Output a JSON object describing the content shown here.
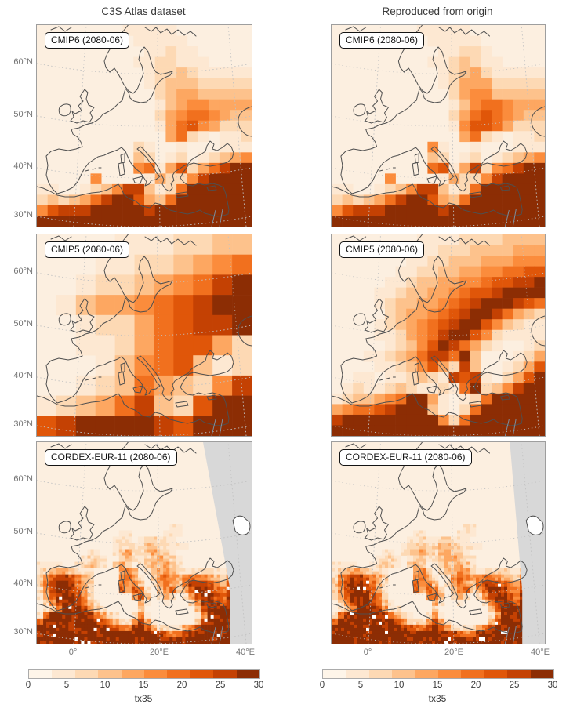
{
  "titles": {
    "left": "C3S Atlas dataset",
    "right": "Reproduced from origin"
  },
  "axes": {
    "lat_ticks": [
      "60°N",
      "50°N",
      "40°N",
      "30°N"
    ],
    "lon_ticks": [
      "0°",
      "20°E",
      "40°E"
    ]
  },
  "colors": {
    "map_background": "#fcefe0",
    "coastline": "#4f4f4f",
    "graticule": "#c2c2c2",
    "out_of_domain_gray": "#d8d8d8",
    "water_line": "#7e8e9c",
    "panel_frame": "#9e9e9e"
  },
  "chart_data": {
    "type": "heatmap",
    "variable": "tx35",
    "vmin": 0,
    "vmax": 30,
    "colorbar": {
      "label": "tx35",
      "ticks": [
        "0",
        "5",
        "10",
        "15",
        "20",
        "25",
        "30"
      ],
      "colors": [
        "#fef5e9",
        "#fde8d2",
        "#fdd9b4",
        "#fdc28c",
        "#fda761",
        "#fb8c3c",
        "#f1701e",
        "#e05609",
        "#c44103",
        "#8c2d04"
      ]
    },
    "panels": [
      {
        "label": "CMIP6 (2080-06)",
        "column": "left",
        "row": 0,
        "style": "pixel",
        "grid": [
          "00000000111110000000",
          "00000000011111000000",
          "00000000001121100000",
          "00000000011221110000",
          "00000000001223211111",
          "00000000001233322222",
          "00000000000234433333",
          "00000000000134554444",
          "00000000000245665433",
          "00000000000146754222",
          "00000000000046210112",
          "00000000021001000111",
          "00000000032012012345",
          "00000000056147246899",
          "00000500001422589999",
          "11001235883126999999",
          "23234689974369999999",
          "57888999998999999999",
          "99999999999999999999"
        ]
      },
      {
        "label": "CMIP6 (2080-06)",
        "column": "right",
        "row": 0,
        "style": "pixel",
        "grid": [
          "00000000111110000000",
          "00000000011111000000",
          "00000000001122100000",
          "00000000011232110000",
          "00000000001234211111",
          "00000000001244422222",
          "00000000000245533333",
          "00000000000135665444",
          "00000000000246765433",
          "00000000000157764222",
          "00000000000046210112",
          "00000000051001000111",
          "00000000032012012345",
          "00000000067148256899",
          "00000500001422589999",
          "11001235883126999999",
          "23234689974369999999",
          "57888999998999999999",
          "99999999999999999999"
        ]
      },
      {
        "label": "CMIP5 (2080-06)",
        "column": "left",
        "row": 1,
        "style": "pixel",
        "grid": [
          "00001112233",
          "00011223456",
          "00122345689",
          "01344567899",
          "00122467889",
          "00112467742",
          "00013567312",
          "00123643258",
          "12346832799",
          "78999987999"
        ]
      },
      {
        "label": "CMIP5 (2080-06)",
        "column": "right",
        "row": 1,
        "style": "pixel",
        "grid": [
          "00000000111122223333",
          "00000001112223333444",
          "00000001122333444555",
          "00000011223344556677",
          "00000112334455677889",
          "00001123344567789999",
          "00001233445678999876",
          "00000234456789986432",
          "00001234567899753211",
          "00001124568997521111",
          "00000123579864210012",
          "00011234688693000124",
          "00001123574283001247",
          "00110112321878102479",
          "01211232112169235899",
          "12334569941012699999",
          "45667899931026999999",
          "89999999995269999999",
          "99999999999999999999"
        ]
      },
      {
        "label": "CORDEX-EUR-11 (2080-06)",
        "column": "left",
        "row": 2,
        "style": "fine",
        "out_of_domain": "left",
        "grid": [
          "0000000000000000000000000000000000",
          "0000000000000000000000000000000000",
          "0000000000000000000000000000000000",
          "0000000000000000000000000000000000",
          "0000000000000000000000000000000000",
          "0000000000000000000000000000000000",
          "0000000000000000000000000000000000",
          "0000000000000000000000000000000000",
          "0000000000000000000000000000000000",
          "0000000000000000000000000000000000",
          "0000000000000000000000000000000000",
          "0000000000000000000000000000000000",
          "0000000000000000000000000000000000",
          "0000000000000000000001100000000000",
          "0000000000000110000011100000000000",
          "0000000000001110122111000000000000",
          "0000000000001221233221110000000000",
          "0000000011001342234321000000000000",
          "0000000122100231123432100000000000",
          "1111001232103420123343100000000000",
          "1234432210000453013454211222113210",
          "2578875420000564102565456654325432",
          "3689986420000656301464368887547654",
          "2589987410000747620357247998658765",
          "1479997520000005730242025899769876",
          "0258998631000000410010002589879987",
          "0136999852100000200000000379999998",
          "2699999986421002510000000159999999",
          "6999999998753225841000000389999999",
          "9999999999987668974221246899999999",
          "9999999999999999999875689999999999",
          "9999999999999999999999999999999999"
        ]
      },
      {
        "label": "CORDEX-EUR-11 (2080-06)",
        "column": "right",
        "row": 2,
        "style": "fine",
        "out_of_domain": "right",
        "grid": [
          "0000000000000000000000000000000000",
          "0000000000000000000000000000000000",
          "0000000000000000000000000000000000",
          "0000000000000000000000000000000000",
          "0000000000000000000000000000000000",
          "0000000000000000000000000000000000",
          "0000000000000000000000000000000000",
          "0000000000000000000000000000000000",
          "0000000000000000000000000000000000",
          "0000000000000000000000000000000000",
          "0000000000000000000000000000000000",
          "0000000000000000000000000000000000",
          "0000000000000000000000000000000000",
          "0000000000000000000001100000000000",
          "0000000000000110000011100000000000",
          "0000000000001121122111000000000000",
          "0000000000012231233221110000000000",
          "0000000011012342244321000000000000",
          "0000000122101231133432100000000000",
          "1111001232103420123343100000000000",
          "1234432210000453013454211222113210",
          "2578875420000564102565456654325432",
          "3689986420000656301464368887547654",
          "2589987410000747620357247998658765",
          "1479997520000005730242025899769876",
          "0258998631000000410010002589879987",
          "0136999852100000200000000379999998",
          "2699999986421002510000000159999999",
          "6999999998753225841000000389999999",
          "9999999999987668974221246899999999",
          "9999999999999999999875689999999999",
          "9999999999999999999999999999999999"
        ]
      }
    ]
  }
}
